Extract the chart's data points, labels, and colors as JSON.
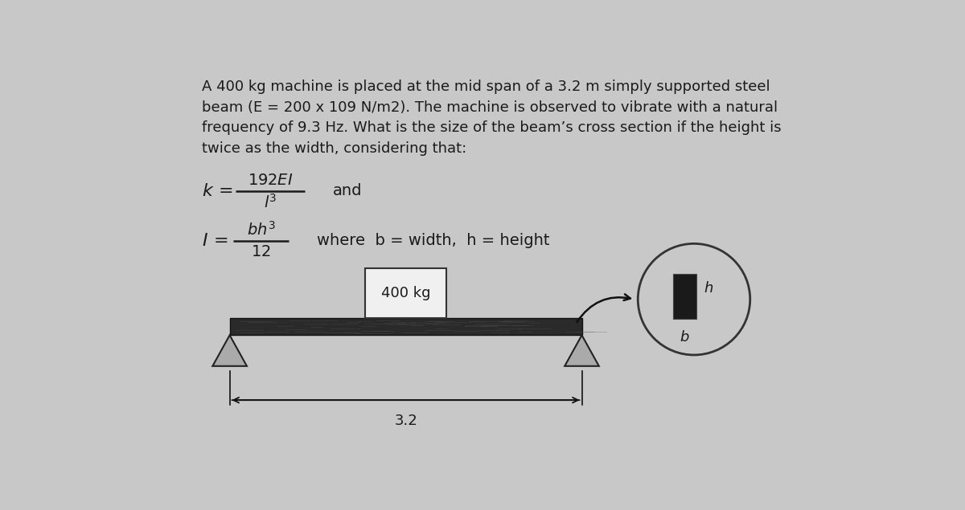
{
  "bg_color": "#c8c8c8",
  "text_color": "#1a1a1a",
  "title_lines": [
    "A 400 kg machine is placed at the mid span of a 3.2 m simply supported steel",
    "beam (E = 200 x 109 N/m2). The machine is observed to vibrate with a natural",
    "frequency of 9.3 Hz. What is the size of the beam’s cross section if the height is",
    "twice as the width, considering that:"
  ],
  "load_label": "400 kg",
  "span_label": "3.2",
  "beam_color": "#2a2a2a",
  "beam_texture": true,
  "triangle_face": "#aaaaaa",
  "triangle_edge": "#222222",
  "box_face": "#f0f0f0",
  "box_edge": "#333333",
  "circle_face": "#c8c8c8",
  "circle_edge": "#333333",
  "cs_rect_face": "#1a1a1a",
  "arrow_color": "#111111",
  "dim_line_color": "#111111"
}
